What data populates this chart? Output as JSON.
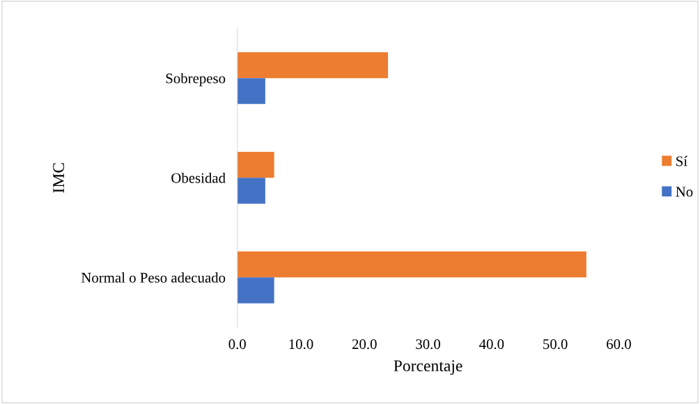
{
  "chart_data": {
    "type": "bar",
    "orientation": "horizontal",
    "xlabel": "Porcentaje",
    "ylabel": "IMC",
    "categories": [
      "Sobrepeso",
      "Obesidad",
      "Normal o Peso adecuado"
    ],
    "series": [
      {
        "name": "Sí",
        "color": "#ed7d31",
        "values": [
          23.7,
          5.8,
          54.9
        ]
      },
      {
        "name": "No",
        "color": "#4472c4",
        "values": [
          4.4,
          4.4,
          5.8
        ]
      }
    ],
    "xlim": [
      0,
      60
    ],
    "xticks": [
      {
        "value": 0,
        "label": "0.0"
      },
      {
        "value": 10,
        "label": "10.0"
      },
      {
        "value": 20,
        "label": "20.0"
      },
      {
        "value": 30,
        "label": "30.0"
      },
      {
        "value": 40,
        "label": "40.0"
      },
      {
        "value": 50,
        "label": "50.0"
      },
      {
        "value": 60,
        "label": "60.0"
      }
    ],
    "grid": false,
    "legend": "right"
  }
}
